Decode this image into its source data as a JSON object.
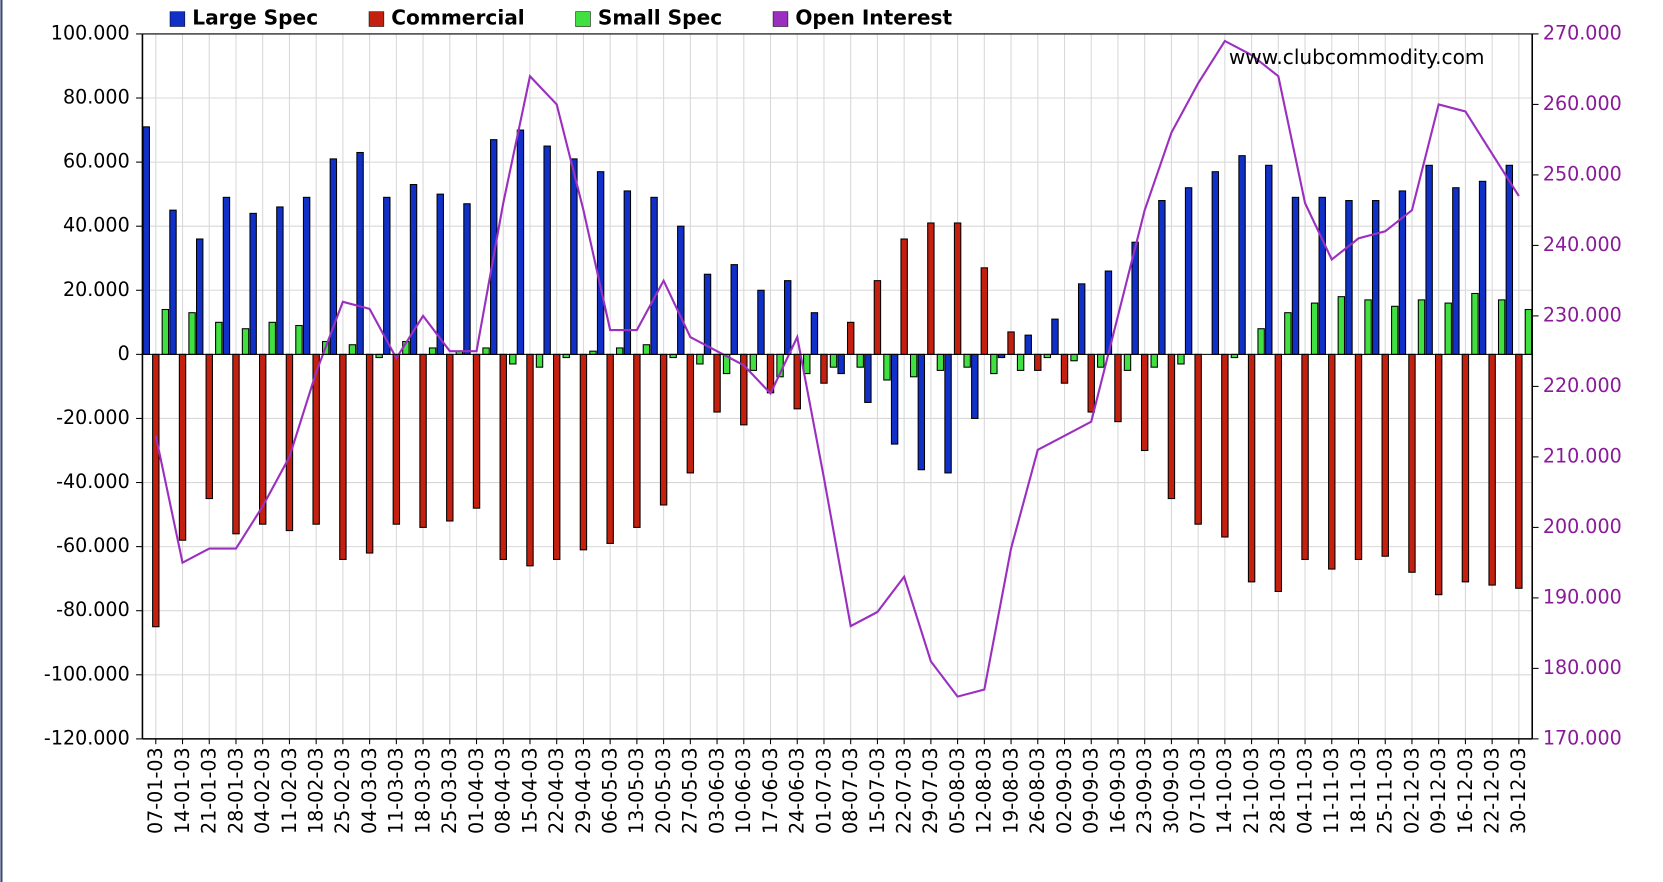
{
  "chart_data": {
    "type": "bar",
    "annotation": "www.clubcommodity.com",
    "categories": [
      "07-01-03",
      "14-01-03",
      "21-01-03",
      "28-01-03",
      "04-02-03",
      "11-02-03",
      "18-02-03",
      "25-02-03",
      "04-03-03",
      "11-03-03",
      "18-03-03",
      "25-03-03",
      "01-04-03",
      "08-04-03",
      "15-04-03",
      "22-04-03",
      "29-04-03",
      "06-05-03",
      "13-05-03",
      "20-05-03",
      "27-05-03",
      "03-06-03",
      "10-06-03",
      "17-06-03",
      "24-06-03",
      "01-07-03",
      "08-07-03",
      "15-07-03",
      "22-07-03",
      "29-07-03",
      "05-08-03",
      "12-08-03",
      "19-08-03",
      "26-08-03",
      "02-09-03",
      "09-09-03",
      "16-09-03",
      "23-09-03",
      "30-09-03",
      "07-10-03",
      "14-10-03",
      "21-10-03",
      "28-10-03",
      "04-11-03",
      "11-11-03",
      "18-11-03",
      "25-11-03",
      "02-12-03",
      "09-12-03",
      "16-12-03",
      "22-12-03",
      "30-12-03"
    ],
    "series": [
      {
        "name": "Large Spec",
        "color": "#1030c8",
        "type": "bar",
        "values": [
          71000,
          45000,
          36000,
          49000,
          44000,
          46000,
          49000,
          61000,
          63000,
          49000,
          53000,
          50000,
          47000,
          67000,
          70000,
          65000,
          61000,
          57000,
          51000,
          49000,
          40000,
          25000,
          28000,
          20000,
          23000,
          13000,
          -6000,
          -15000,
          -28000,
          -36000,
          -37000,
          -20000,
          -1000,
          6000,
          11000,
          22000,
          26000,
          35000,
          48000,
          52000,
          57000,
          62000,
          59000,
          49000,
          49000,
          48000,
          48000,
          51000,
          59000,
          52000,
          54000,
          59000
        ]
      },
      {
        "name": "Commercial",
        "color": "#c42010",
        "type": "bar",
        "values": [
          -85000,
          -58000,
          -45000,
          -56000,
          -53000,
          -55000,
          -53000,
          -64000,
          -62000,
          -53000,
          -54000,
          -52000,
          -48000,
          -64000,
          -66000,
          -64000,
          -61000,
          -59000,
          -54000,
          -47000,
          -37000,
          -18000,
          -22000,
          -12000,
          -17000,
          -9000,
          10000,
          23000,
          36000,
          41000,
          41000,
          27000,
          7000,
          -5000,
          -9000,
          -18000,
          -21000,
          -30000,
          -45000,
          -53000,
          -57000,
          -71000,
          -74000,
          -64000,
          -67000,
          -64000,
          -63000,
          -68000,
          -75000,
          -71000,
          -72000,
          -73000
        ]
      },
      {
        "name": "Small Spec",
        "color": "#40e040",
        "type": "bar",
        "values": [
          14000,
          13000,
          10000,
          8000,
          10000,
          9000,
          4000,
          3000,
          -1000,
          4000,
          2000,
          1000,
          2000,
          -3000,
          -4000,
          -1000,
          1000,
          2000,
          3000,
          -1000,
          -3000,
          -6000,
          -5000,
          -7000,
          -6000,
          -4000,
          -4000,
          -8000,
          -7000,
          -5000,
          -4000,
          -6000,
          -5000,
          -1000,
          -2000,
          -4000,
          -5000,
          -4000,
          -3000,
          0,
          -1000,
          8000,
          13000,
          16000,
          18000,
          17000,
          15000,
          17000,
          16000,
          19000,
          17000,
          14000
        ]
      },
      {
        "name": "Open Interest",
        "color": "#9b30c0",
        "type": "line",
        "axis": "y2",
        "values": [
          213000,
          195000,
          197000,
          197000,
          203000,
          210000,
          222000,
          232000,
          231000,
          224000,
          230000,
          225000,
          225000,
          246000,
          264000,
          260000,
          245000,
          228000,
          228000,
          235000,
          227000,
          225000,
          223000,
          219000,
          227000,
          207000,
          186000,
          188000,
          193000,
          181000,
          176000,
          177000,
          197000,
          211000,
          213000,
          215000,
          230000,
          245000,
          256000,
          263000,
          269000,
          267000,
          264000,
          246000,
          238000,
          241000,
          242000,
          245000,
          260000,
          259000,
          253000,
          247000
        ]
      }
    ],
    "ylim": [
      -120000,
      100000
    ],
    "yticks": [
      {
        "value": -120000,
        "label": "-120.000"
      },
      {
        "value": -100000,
        "label": "-100.000"
      },
      {
        "value": -80000,
        "label": "-80.000"
      },
      {
        "value": -60000,
        "label": "-60.000"
      },
      {
        "value": -40000,
        "label": "-40.000"
      },
      {
        "value": -20000,
        "label": "-20.000"
      },
      0,
      {
        "value": 20000,
        "label": "20.000"
      },
      {
        "value": 40000,
        "label": "40.000"
      },
      {
        "value": 60000,
        "label": "60.000"
      },
      {
        "value": 80000,
        "label": "80.000"
      },
      {
        "value": 100000,
        "label": "100.000"
      }
    ],
    "y2lim": [
      170000,
      270000
    ],
    "y2ticks": [
      {
        "value": 170000,
        "label": "170.000"
      },
      {
        "value": 180000,
        "label": "180.000"
      },
      {
        "value": 190000,
        "label": "190.000"
      },
      {
        "value": 200000,
        "label": "200.000"
      },
      {
        "value": 210000,
        "label": "210.000"
      },
      {
        "value": 220000,
        "label": "220.000"
      },
      {
        "value": 230000,
        "label": "230.000"
      },
      {
        "value": 240000,
        "label": "240.000"
      },
      {
        "value": 250000,
        "label": "250.000"
      },
      {
        "value": 260000,
        "label": "260.000"
      },
      {
        "value": 270000,
        "label": "270.000"
      }
    ],
    "y2color": "#8a1a9a",
    "grid": true,
    "legend": "top"
  }
}
